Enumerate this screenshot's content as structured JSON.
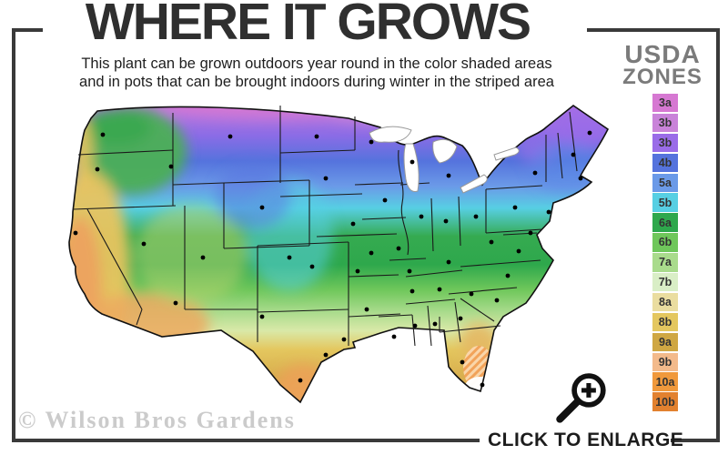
{
  "header": {
    "title": "WHERE IT GROWS",
    "subtitle_line1": "This plant can be grown outdoors year round in the color shaded areas",
    "subtitle_line2": "and in pots that can be brought indoors during winter in the striped area"
  },
  "legend": {
    "title_line1": "USDA",
    "title_line2": "ZONES",
    "zones": [
      {
        "label": "3a",
        "color": "#d678d2"
      },
      {
        "label": "3b",
        "color": "#c983d9"
      },
      {
        "label": "3b",
        "color": "#9a6ce8"
      },
      {
        "label": "4b",
        "color": "#5573dd"
      },
      {
        "label": "5a",
        "color": "#6b9ae8"
      },
      {
        "label": "5b",
        "color": "#57cfe3"
      },
      {
        "label": "6a",
        "color": "#2ea84c"
      },
      {
        "label": "6b",
        "color": "#6fc75b"
      },
      {
        "label": "7a",
        "color": "#a9db8c"
      },
      {
        "label": "7b",
        "color": "#d9eec6"
      },
      {
        "label": "8a",
        "color": "#eadda0"
      },
      {
        "label": "8b",
        "color": "#e4c75f"
      },
      {
        "label": "9a",
        "color": "#cfa743"
      },
      {
        "label": "9b",
        "color": "#f3ba8b"
      },
      {
        "label": "10a",
        "color": "#f0993c"
      },
      {
        "label": "10b",
        "color": "#e2812f"
      }
    ]
  },
  "map": {
    "subject": "USDA hardiness zone map of the continental United States",
    "icons": {
      "zoom_icon": "magnifier-plus-icon"
    }
  },
  "watermark": "© Wilson Bros Gardens",
  "enlarge": {
    "label": "CLICK TO ENLARGE"
  }
}
